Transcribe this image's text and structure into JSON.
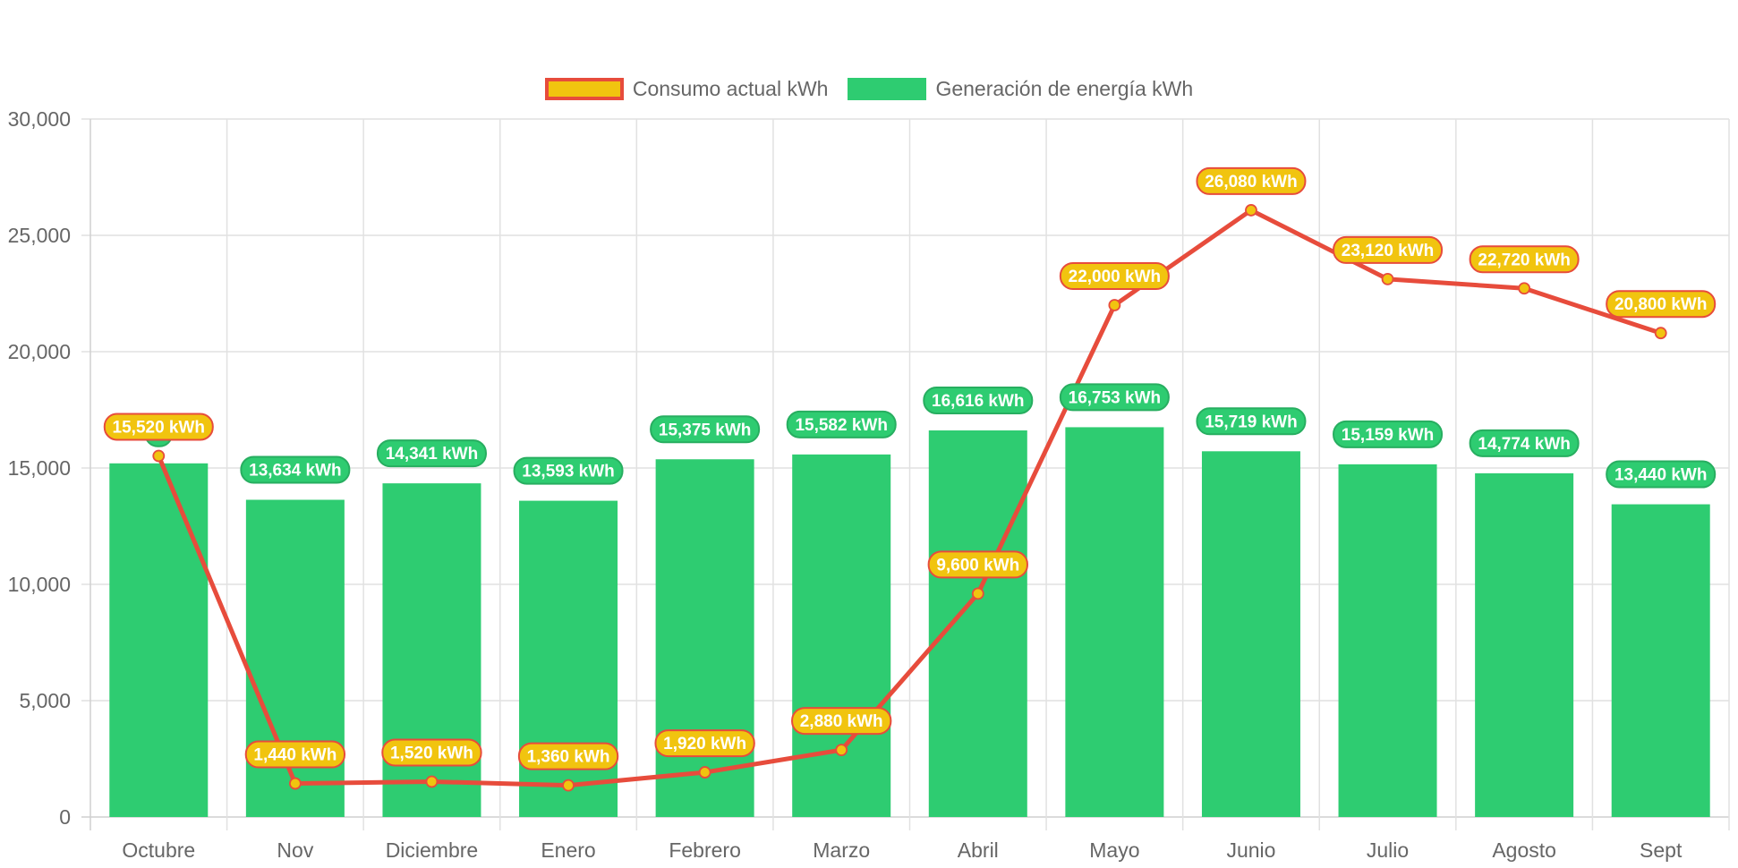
{
  "chart_data": {
    "type": "bar",
    "title": "",
    "xlabel": "",
    "ylabel": "",
    "ylim": [
      0,
      30000
    ],
    "y_ticks": [
      0,
      5000,
      10000,
      15000,
      20000,
      25000,
      30000
    ],
    "y_tick_labels": [
      "0",
      "5,000",
      "10,000",
      "15,000",
      "20,000",
      "25,000",
      "30,000"
    ],
    "grid": true,
    "legend_position": "top-center",
    "categories": [
      "Octubre",
      "Nov",
      "Diciembre",
      "Enero",
      "Febrero",
      "Marzo",
      "Abril",
      "Mayo",
      "Junio",
      "Julio",
      "Agosto",
      "Sept"
    ],
    "series": [
      {
        "name": "Consumo actual kWh",
        "type": "line",
        "color": "#F1C40F",
        "border_color": "#E74C3C",
        "values": [
          15520,
          1440,
          1520,
          1360,
          1920,
          2880,
          9600,
          22000,
          26080,
          23120,
          22720,
          20800
        ],
        "labels": [
          "15,520 kWh",
          "1,440 kWh",
          "1,520 kWh",
          "1,360 kWh",
          "1,920 kWh",
          "2,880 kWh",
          "9,600 kWh",
          "22,000 kWh",
          "26,080 kWh",
          "23,120 kWh",
          "22,720 kWh",
          "20,800 kWh"
        ]
      },
      {
        "name": "Generación de energía kWh",
        "type": "bar",
        "color": "#2ECC71",
        "border_color": "#27AE60",
        "values": [
          15200,
          13634,
          14341,
          13593,
          15375,
          15582,
          16616,
          16753,
          15719,
          15159,
          14774,
          13440
        ],
        "labels": [
          "",
          "13,634 kWh",
          "14,341 kWh",
          "13,593 kWh",
          "15,375 kWh",
          "15,582 kWh",
          "16,616 kWh",
          "16,753 kWh",
          "15,719 kWh",
          "15,159 kWh",
          "14,774 kWh",
          "13,440 kWh"
        ]
      }
    ]
  },
  "legend": {
    "items": [
      {
        "label": "Consumo actual kWh",
        "fill": "#F1C40F",
        "border": "#E74C3C"
      },
      {
        "label": "Generación de energía kWh",
        "fill": "#2ECC71",
        "border": "#2ECC71"
      }
    ]
  },
  "colors": {
    "grid": "#e1e1e1",
    "axis": "#cfcfcf",
    "tick_text": "#666666"
  }
}
